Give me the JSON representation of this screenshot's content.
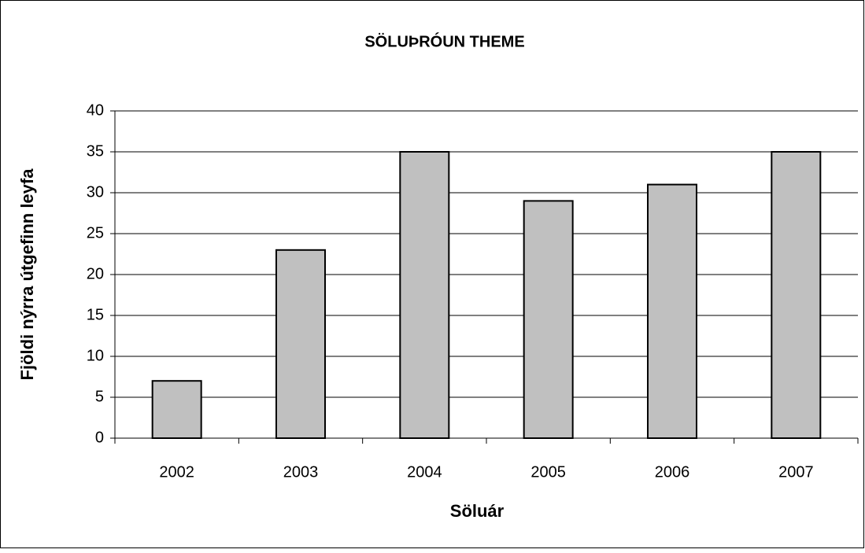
{
  "chart_data": {
    "type": "bar",
    "title": "SÖLUÞRÓUN THEME",
    "x_label": "Söluár",
    "y_label": "Fjöldi nýrra útgefinn leyfa",
    "categories": [
      "2002",
      "2003",
      "2004",
      "2005",
      "2006",
      "2007"
    ],
    "values": [
      7,
      23,
      35,
      29,
      31,
      35
    ],
    "color": "#c0c0c0",
    "ylim": [
      0,
      40
    ],
    "yticks": [
      0,
      5,
      10,
      15,
      20,
      25,
      30,
      35,
      40
    ],
    "grid": true
  }
}
